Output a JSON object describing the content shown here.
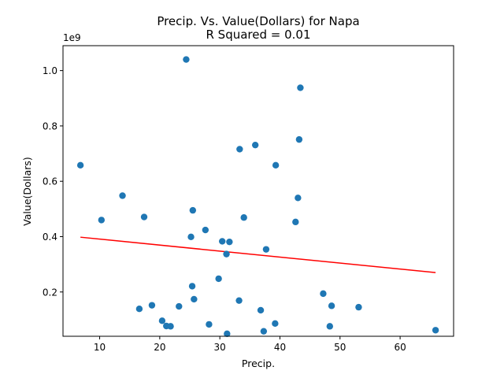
{
  "chart_data": {
    "type": "scatter",
    "title": "Precip. Vs. Value(Dollars) for Napa",
    "subtitle": "R Squared =  0.01",
    "xlabel": "Precip.",
    "ylabel": "Value(Dollars)",
    "y_offset_label": "1e9",
    "xlim": [
      3.9,
      68.9
    ],
    "ylim": [
      40000000.0,
      1090000000.0
    ],
    "x_ticks": [
      10,
      20,
      30,
      40,
      50,
      60
    ],
    "x_tick_labels": [
      "10",
      "20",
      "30",
      "40",
      "50",
      "60"
    ],
    "y_ticks": [
      200000000,
      400000000,
      600000000,
      800000000,
      1000000000
    ],
    "y_tick_labels": [
      "0.2",
      "0.4",
      "0.6",
      "0.8",
      "1.0"
    ],
    "grid": false,
    "colors": {
      "points": "#1f77b4",
      "regression": "#ff0000"
    },
    "points": [
      {
        "x": 6.8,
        "y": 658000000
      },
      {
        "x": 10.3,
        "y": 460000000
      },
      {
        "x": 13.8,
        "y": 548000000
      },
      {
        "x": 16.6,
        "y": 139000000
      },
      {
        "x": 17.4,
        "y": 471000000
      },
      {
        "x": 18.7,
        "y": 152000000
      },
      {
        "x": 20.4,
        "y": 96000000
      },
      {
        "x": 21.1,
        "y": 77000000
      },
      {
        "x": 21.8,
        "y": 76000000
      },
      {
        "x": 23.2,
        "y": 148000000
      },
      {
        "x": 24.4,
        "y": 1040000000
      },
      {
        "x": 25.2,
        "y": 399000000
      },
      {
        "x": 25.4,
        "y": 221000000
      },
      {
        "x": 25.5,
        "y": 495000000
      },
      {
        "x": 25.7,
        "y": 174000000
      },
      {
        "x": 27.6,
        "y": 424000000
      },
      {
        "x": 28.2,
        "y": 83000000
      },
      {
        "x": 29.8,
        "y": 248000000
      },
      {
        "x": 30.4,
        "y": 383000000
      },
      {
        "x": 31.1,
        "y": 337000000
      },
      {
        "x": 31.2,
        "y": 49000000
      },
      {
        "x": 31.6,
        "y": 381000000
      },
      {
        "x": 33.2,
        "y": 169000000
      },
      {
        "x": 33.3,
        "y": 716000000
      },
      {
        "x": 34.0,
        "y": 469000000
      },
      {
        "x": 35.9,
        "y": 731000000
      },
      {
        "x": 36.8,
        "y": 134000000
      },
      {
        "x": 37.3,
        "y": 58000000
      },
      {
        "x": 37.7,
        "y": 354000000
      },
      {
        "x": 39.2,
        "y": 86000000
      },
      {
        "x": 39.3,
        "y": 658000000
      },
      {
        "x": 42.6,
        "y": 453000000
      },
      {
        "x": 43.0,
        "y": 540000000
      },
      {
        "x": 43.2,
        "y": 751000000
      },
      {
        "x": 43.4,
        "y": 938000000
      },
      {
        "x": 47.2,
        "y": 194000000
      },
      {
        "x": 48.3,
        "y": 76000000
      },
      {
        "x": 48.6,
        "y": 150000000
      },
      {
        "x": 53.1,
        "y": 145000000
      },
      {
        "x": 65.9,
        "y": 62000000
      }
    ],
    "regression_line": {
      "x": [
        6.8,
        65.9
      ],
      "y": [
        398000000,
        270000000
      ]
    }
  }
}
